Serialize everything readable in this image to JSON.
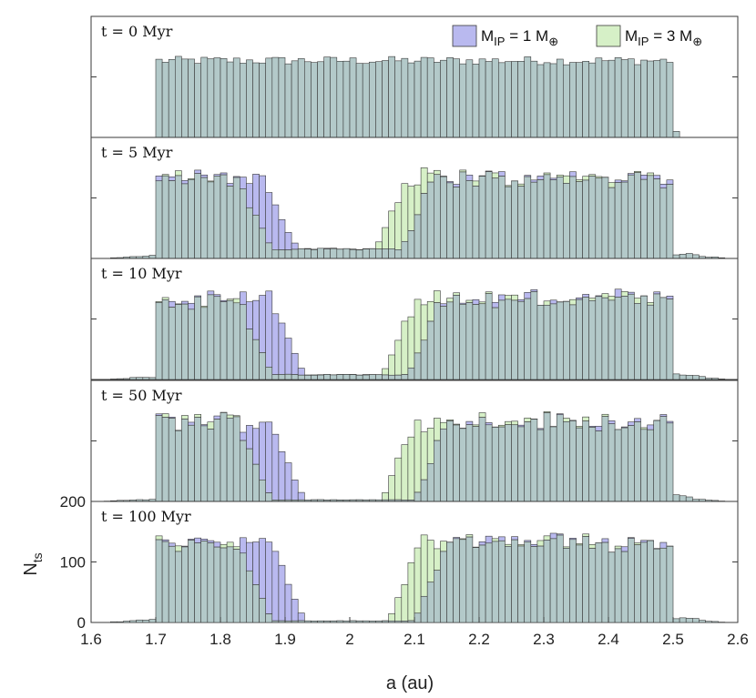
{
  "chart_data": {
    "type": "bar",
    "subtype": "stacked-panel histogram (overlaid)",
    "xlabel": "a (au)",
    "ylabel": "N",
    "ylabel_subscript": "ts",
    "xlim": [
      1.6,
      2.6
    ],
    "ylim": [
      0,
      200
    ],
    "bin_width": 0.01,
    "x_ticks": [
      "1.6",
      "1.7",
      "1.8",
      "1.9",
      "2",
      "2.1",
      "2.2",
      "2.3",
      "2.4",
      "2.5",
      "2.6"
    ],
    "y_ticks_bottom_panel": [
      "0",
      "100",
      "200"
    ],
    "legend": {
      "placement": "top-right",
      "entries": [
        {
          "label": "M",
          "sub": "IP",
          "value": " = 1 M",
          "sub2": "⊕",
          "color": "#b9b9ef"
        },
        {
          "label": "M",
          "sub": "IP",
          "value": " = 3 M",
          "sub2": "⊕",
          "color": "#d6f0c7"
        }
      ]
    },
    "colors": {
      "series1": "#b9b9ef",
      "series2": "#d6f0c7",
      "overlap": "#b3c9c9",
      "edge": "#3a3a3a",
      "axis": "#3a3a3a"
    },
    "panels": [
      {
        "label": "t = 0 Myr",
        "time_myr": 0,
        "distribution": "initial",
        "summary": "uniform ~125 per bin from 1.70 to 2.50 au, identical for both series"
      },
      {
        "label": "t = 5 Myr",
        "time_myr": 5,
        "distribution": "gap",
        "inner_edge": {
          "m1": 1.92,
          "m3": 1.88
        },
        "outer_edge": {
          "m1": 2.08,
          "m3": 2.04
        },
        "summary": "Kirkwood-like gap forming near 2.0 au"
      },
      {
        "label": "t = 10 Myr",
        "time_myr": 10,
        "distribution": "gap",
        "inner_edge": {
          "m1": 1.93,
          "m3": 1.88
        },
        "outer_edge": {
          "m1": 2.09,
          "m3": 2.05
        }
      },
      {
        "label": "t = 50 Myr",
        "time_myr": 50,
        "distribution": "gap",
        "inner_edge": {
          "m1": 1.93,
          "m3": 1.88
        },
        "outer_edge": {
          "m1": 2.1,
          "m3": 2.05
        }
      },
      {
        "label": "t = 100 Myr",
        "time_myr": 100,
        "distribution": "gap",
        "inner_edge": {
          "m1": 1.93,
          "m3": 1.88
        },
        "outer_edge": {
          "m1": 2.1,
          "m3": 2.06
        }
      }
    ]
  }
}
